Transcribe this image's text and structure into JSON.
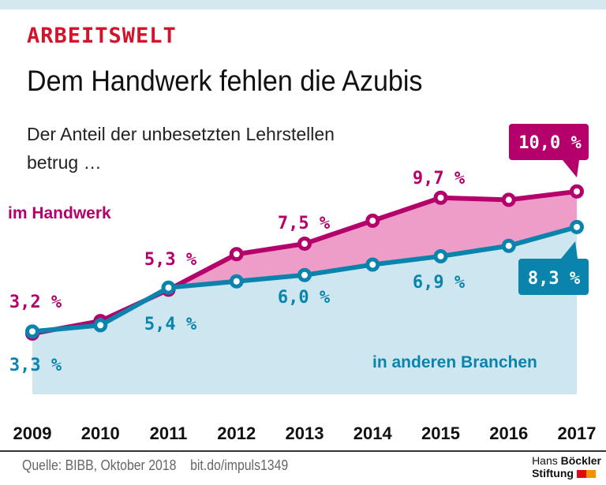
{
  "kicker": "ARBEITSWELT",
  "title": "Dem Handwerk fehlen die Azubis",
  "subtitle_line1": "Der Anteil der unbesetzten Lehrstellen",
  "subtitle_line2": "betrug …",
  "footer": {
    "source": "Quelle: BIBB, Oktober 2018    bit.do/impuls1349",
    "logo_line1_a": "Hans ",
    "logo_line1_b": "Böckler",
    "logo_line2": "Stiftung"
  },
  "colors": {
    "handwerk": "#b5006b",
    "handwerk_fill": "#ee9dc8",
    "andere": "#0a84ad",
    "andere_fill": "#cde6ef",
    "kicker": "#d4122b"
  },
  "chart_data": {
    "type": "area",
    "categories": [
      "2009",
      "2010",
      "2011",
      "2012",
      "2013",
      "2014",
      "2015",
      "2016",
      "2017"
    ],
    "series": [
      {
        "name": "im Handwerk",
        "values": [
          3.2,
          3.8,
          5.3,
          7.0,
          7.5,
          8.6,
          9.7,
          9.6,
          10.0
        ],
        "labels": {
          "0": "3,2 %",
          "2": "5,3 %",
          "4": "7,5 %",
          "6": "9,7 %",
          "8": "10,0 %"
        }
      },
      {
        "name": "in anderen Branchen",
        "values": [
          3.3,
          3.6,
          5.4,
          5.7,
          6.0,
          6.5,
          6.9,
          7.4,
          8.3
        ],
        "labels": {
          "0": "3,3 %",
          "2": "5,4 %",
          "4": "6,0 %",
          "6": "6,9 %",
          "8": "8,3 %"
        }
      }
    ],
    "xlabel": "",
    "ylabel": "",
    "grid": false
  }
}
